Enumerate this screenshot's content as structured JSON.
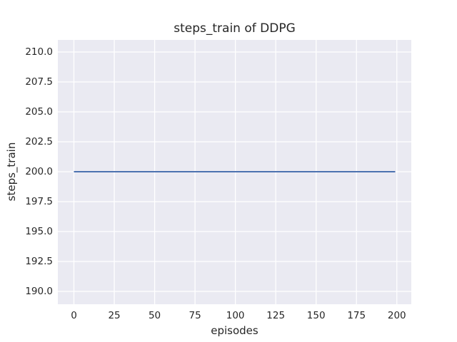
{
  "chart_data": {
    "type": "line",
    "title": "steps_train of DDPG",
    "xlabel": "episodes",
    "ylabel": "steps_train",
    "xlim": [
      -9.95,
      208.95
    ],
    "ylim": [
      188.93,
      211.01
    ],
    "grid": true,
    "legend": "none",
    "x_ticks": {
      "values": [
        0,
        25,
        50,
        75,
        100,
        125,
        150,
        175,
        200
      ],
      "labels": [
        "0",
        "25",
        "50",
        "75",
        "100",
        "125",
        "150",
        "175",
        "200"
      ]
    },
    "y_ticks": {
      "values": [
        190.0,
        192.5,
        195.0,
        197.5,
        200.0,
        202.5,
        205.0,
        207.5,
        210.0
      ],
      "labels": [
        "190.0",
        "192.5",
        "195.0",
        "197.5",
        "200.0",
        "202.5",
        "205.0",
        "207.5",
        "210.0"
      ]
    },
    "series": [
      {
        "name": "steps_train",
        "color": "#4C72B0",
        "line_width": 2,
        "points": [
          [
            0,
            200
          ],
          [
            199,
            200
          ]
        ]
      }
    ],
    "colors": {
      "figure_background": "#FFFFFF",
      "plot_background": "#EAEAF2",
      "gridline": "#FFFFFF",
      "text": "#262626",
      "line": "#4C72B0"
    }
  }
}
